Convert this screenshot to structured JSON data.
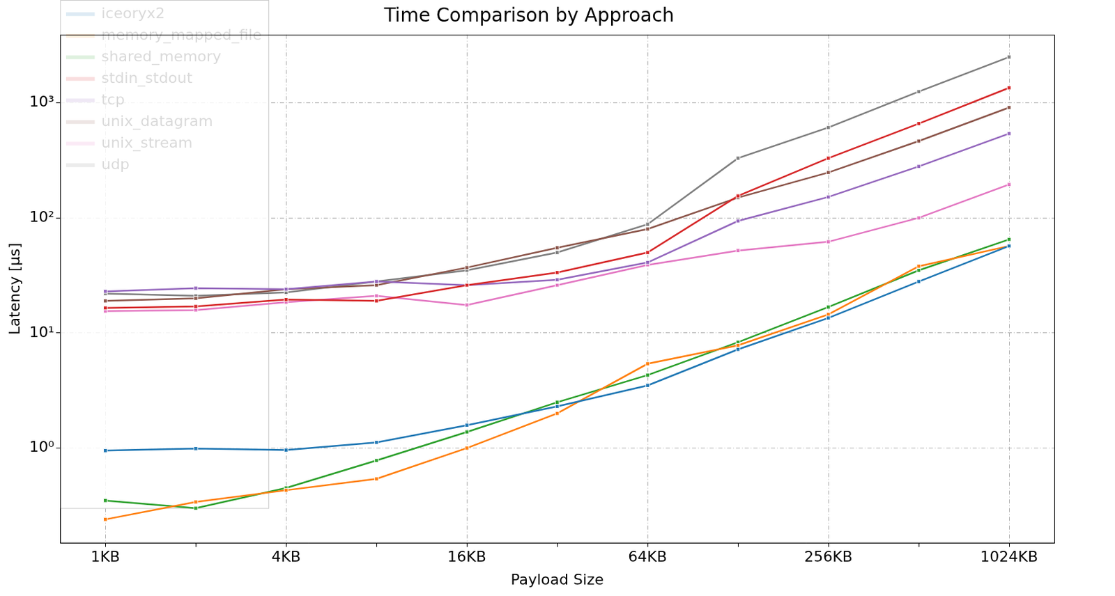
{
  "chart_data": {
    "type": "line",
    "title": "Time Comparison by Approach",
    "x_label": "Payload Size",
    "y_label": "Latency [µs]",
    "categories": [
      "1KB",
      null,
      "4KB",
      null,
      "16KB",
      null,
      "64KB",
      null,
      "256KB",
      null,
      "1024KB"
    ],
    "series": [
      {
        "name": "iceoryx2",
        "color": "#1f77b4",
        "values": [
          0.95,
          0.99,
          0.96,
          1.12,
          1.58,
          2.3,
          3.5,
          7.2,
          13.5,
          28,
          57
        ]
      },
      {
        "name": "memory_mapped_file",
        "color": "#ff7f0e",
        "values": [
          0.24,
          0.34,
          0.43,
          0.54,
          1.0,
          2.0,
          5.4,
          7.8,
          14.5,
          38,
          57
        ]
      },
      {
        "name": "shared_memory",
        "color": "#2ca02c",
        "values": [
          0.35,
          0.3,
          0.45,
          0.78,
          1.38,
          2.5,
          4.3,
          8.3,
          16.8,
          35,
          65
        ]
      },
      {
        "name": "stdin_stdout",
        "color": "#d62728",
        "values": [
          16.5,
          17,
          19.5,
          19,
          26,
          33.5,
          50,
          155,
          330,
          660,
          1350
        ]
      },
      {
        "name": "tcp",
        "color": "#9467bd",
        "values": [
          23,
          24.5,
          24,
          28,
          26,
          29,
          41,
          94,
          152,
          280,
          540
        ]
      },
      {
        "name": "unix_datagram",
        "color": "#8c564b",
        "values": [
          19,
          20,
          24,
          26,
          37,
          55,
          80,
          150,
          248,
          465,
          910
        ]
      },
      {
        "name": "unix_stream",
        "color": "#e377c2",
        "values": [
          15.5,
          15.8,
          18.5,
          21,
          17.5,
          26,
          39,
          52,
          62,
          100,
          195
        ]
      },
      {
        "name": "udp",
        "color": "#7f7f7f",
        "values": [
          22,
          21,
          22.5,
          28,
          35,
          50,
          88,
          330,
          610,
          1250,
          2500
        ]
      }
    ],
    "log": "y",
    "ylim": [
      0.15,
      3900
    ],
    "yticks": [
      {
        "value": 1,
        "label": "10⁰"
      },
      {
        "value": 10,
        "label": "10¹"
      },
      {
        "value": 100,
        "label": "10²"
      },
      {
        "value": 1000,
        "label": "10³"
      }
    ],
    "grid": true,
    "legend": "upper left",
    "marker": "square",
    "line_style": "solid"
  }
}
